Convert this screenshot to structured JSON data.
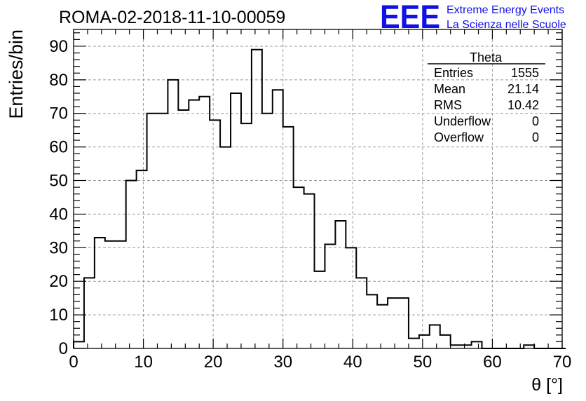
{
  "header": {
    "run_title": "ROMA-02-2018-11-10-00059",
    "logo_text": "EEE",
    "logo_line1": "Extreme Energy Events",
    "logo_line2": "La Scienza nelle Scuole",
    "logo_color": "#1010e8"
  },
  "stats": {
    "title": "Theta",
    "rows": [
      {
        "label": "Entries",
        "value": "1555"
      },
      {
        "label": "Mean",
        "value": "21.14"
      },
      {
        "label": "RMS",
        "value": "10.42"
      },
      {
        "label": "Underflow",
        "value": "0"
      },
      {
        "label": "Overflow",
        "value": "0"
      }
    ]
  },
  "chart_data": {
    "type": "bar",
    "histogram": true,
    "xlabel": "θ [°]",
    "ylabel": "Entries/bin",
    "xlim": [
      0,
      70
    ],
    "ylim": [
      0,
      95
    ],
    "grid": true,
    "x_ticks": [
      0,
      10,
      20,
      30,
      40,
      50,
      60,
      70
    ],
    "y_ticks": [
      0,
      10,
      20,
      30,
      40,
      50,
      60,
      70,
      80,
      90
    ],
    "bin_width": 1.5,
    "bin_start": 0,
    "values": [
      2,
      21,
      33,
      32,
      32,
      50,
      53,
      70,
      70,
      80,
      71,
      74,
      75,
      68,
      60,
      76,
      67,
      89,
      70,
      77,
      66,
      48,
      46,
      23,
      31,
      38,
      30,
      21,
      16,
      13,
      15,
      15,
      3,
      4,
      7,
      4,
      1,
      1,
      2,
      0,
      0,
      0,
      0,
      1,
      0,
      0,
      0
    ]
  }
}
